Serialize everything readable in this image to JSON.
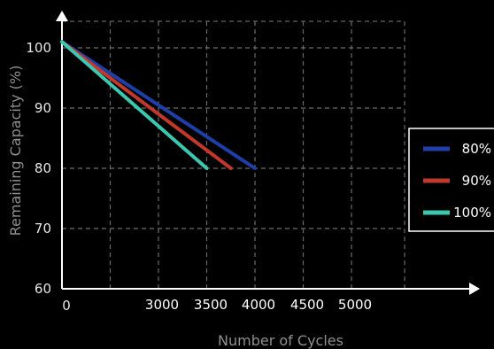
{
  "chart_data": {
    "type": "line",
    "title": "",
    "xlabel": "Number of Cycles",
    "ylabel": "Remaining Capacity (%)",
    "xlim": [
      0,
      7000
    ],
    "ylim": [
      60,
      105
    ],
    "yticks": [
      "100",
      "90",
      "80",
      "70",
      "60"
    ],
    "xtick_origin": "0",
    "xticks": [
      "3000",
      "3500",
      "4000",
      "4500",
      "5000"
    ],
    "grid": true,
    "legend_position": "right",
    "series": [
      {
        "name": "80%",
        "color": "#1f3fa8",
        "points": [
          {
            "x": 0,
            "y": 101
          },
          {
            "x": 4000,
            "y": 80
          }
        ]
      },
      {
        "name": "90%",
        "color": "#c0392b",
        "points": [
          {
            "x": 0,
            "y": 101
          },
          {
            "x": 3500,
            "y": 80
          }
        ]
      },
      {
        "name": "100%",
        "color": "#3cc7b0",
        "points": [
          {
            "x": 0,
            "y": 101
          },
          {
            "x": 3000,
            "y": 80
          }
        ]
      }
    ]
  }
}
